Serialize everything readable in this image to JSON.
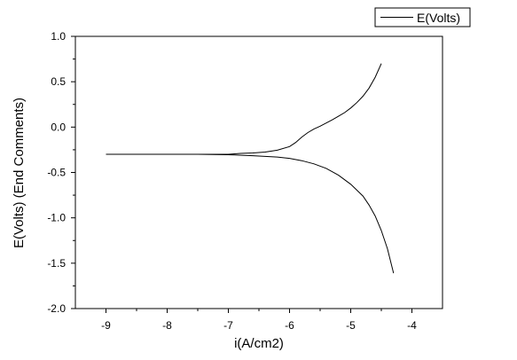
{
  "chart_data": {
    "type": "line",
    "xlabel": "i(A/cm2)",
    "ylabel": "E(Volts) (End Comments)",
    "xlim": [
      -9.5,
      -3.5
    ],
    "ylim": [
      -2.0,
      1.0
    ],
    "x_ticks": [
      -9,
      -8,
      -7,
      -6,
      -5,
      -4
    ],
    "x_tick_labels": [
      "-9",
      "-8",
      "-7",
      "-6",
      "-5",
      "-4"
    ],
    "y_ticks": [
      -2.0,
      -1.5,
      -1.0,
      -0.5,
      0.0,
      0.5,
      1.0
    ],
    "y_tick_labels": [
      "-2.0",
      "-1.5",
      "-1.0",
      "-0.5",
      "0.0",
      "0.5",
      "1.0"
    ],
    "grid": false,
    "legend_position": "top-right",
    "series": [
      {
        "name": "E(Volts)",
        "color": "#000000",
        "segments": [
          {
            "x": [
              -9.0,
              -8.5,
              -8.0,
              -7.5,
              -7.0,
              -6.8,
              -6.6,
              -6.4,
              -6.2,
              -6.0,
              -5.9,
              -5.8,
              -5.7,
              -5.6,
              -5.5,
              -5.4,
              -5.3,
              -5.2,
              -5.1,
              -5.0,
              -4.9,
              -4.8,
              -4.7,
              -4.6,
              -4.5
            ],
            "y": [
              -0.3,
              -0.3,
              -0.3,
              -0.3,
              -0.3,
              -0.29,
              -0.285,
              -0.275,
              -0.255,
              -0.215,
              -0.17,
              -0.11,
              -0.06,
              -0.02,
              0.01,
              0.045,
              0.08,
              0.12,
              0.16,
              0.21,
              0.27,
              0.34,
              0.43,
              0.55,
              0.7
            ]
          },
          {
            "x": [
              -9.0,
              -8.0,
              -7.5,
              -7.0,
              -6.6,
              -6.2,
              -6.0,
              -5.8,
              -5.6,
              -5.4,
              -5.2,
              -5.0,
              -4.8,
              -4.7,
              -4.6,
              -4.5,
              -4.4,
              -4.3
            ],
            "y": [
              -0.3,
              -0.3,
              -0.3,
              -0.305,
              -0.315,
              -0.33,
              -0.345,
              -0.37,
              -0.405,
              -0.455,
              -0.53,
              -0.63,
              -0.76,
              -0.86,
              -0.98,
              -1.14,
              -1.34,
              -1.61
            ]
          }
        ]
      }
    ]
  }
}
